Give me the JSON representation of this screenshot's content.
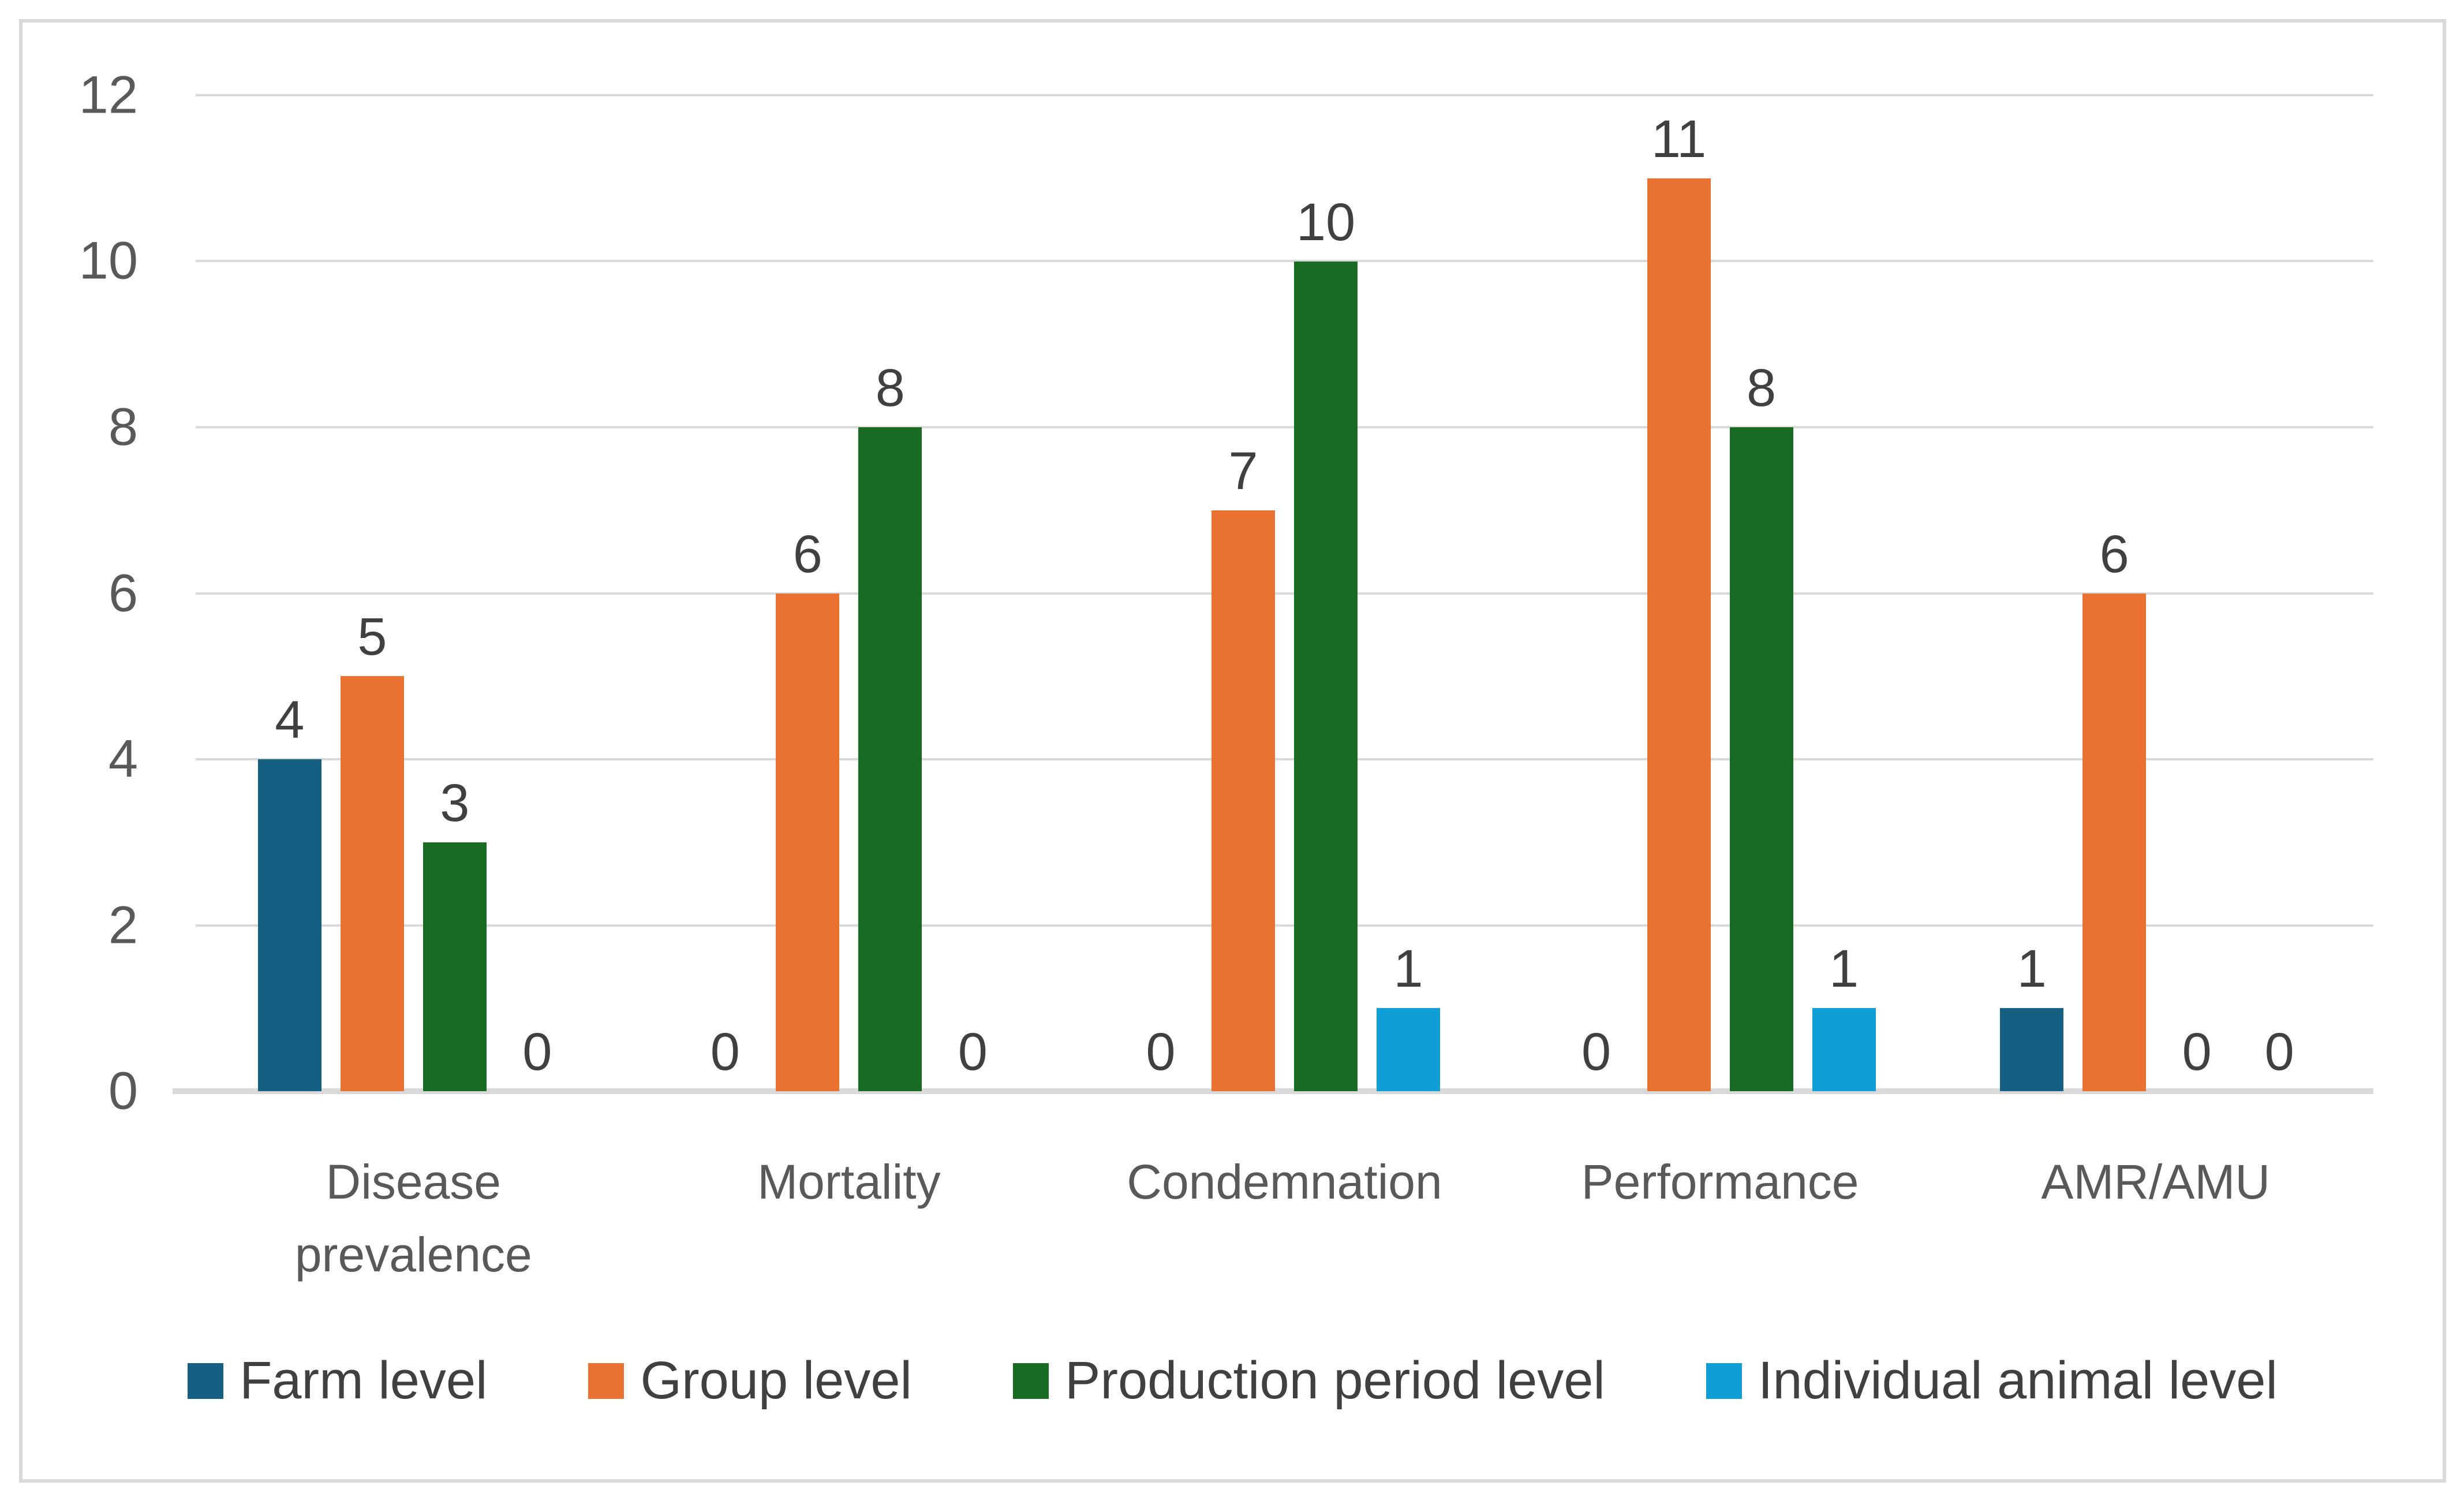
{
  "chart_data": {
    "type": "bar",
    "title": "",
    "categories": [
      "Disease prevalence",
      "Mortality",
      "Condemnation",
      "Performance",
      "AMR/AMU"
    ],
    "series": [
      {
        "name": "Farm level",
        "color": "#156082",
        "values": [
          4,
          0,
          0,
          0,
          1
        ]
      },
      {
        "name": "Group level",
        "color": "#E97132",
        "values": [
          5,
          6,
          7,
          11,
          6
        ]
      },
      {
        "name": "Production period level",
        "color": "#196B24",
        "values": [
          3,
          8,
          10,
          8,
          0
        ]
      },
      {
        "name": "Individual animal level",
        "color": "#0F9ED5",
        "values": [
          0,
          0,
          1,
          1,
          0
        ]
      }
    ],
    "ylim": [
      0,
      12
    ],
    "yticks": [
      0,
      2,
      4,
      6,
      8,
      10,
      12
    ],
    "grid": true,
    "data_labels": true,
    "legend_position": "bottom"
  },
  "style": {
    "background": "#FFFFFF",
    "frame_border_color": "#D9D9D9",
    "gridline_color": "#D9D9D9",
    "axis_line_color": "#D9D9D9",
    "tick_label_color": "#595959",
    "category_label_color": "#595959",
    "data_label_color": "#404040",
    "legend_label_color": "#404040"
  }
}
